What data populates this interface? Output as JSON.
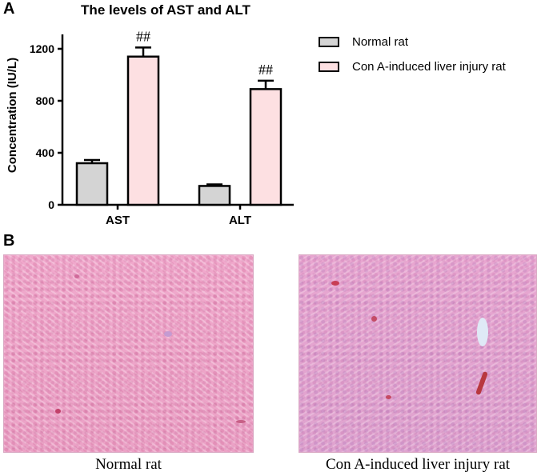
{
  "panels": {
    "a_label": "A",
    "b_label": "B"
  },
  "chart_data": {
    "type": "bar",
    "title": "The levels of AST and ALT",
    "ylabel": "Concentration (IU/L)",
    "xlabel": "",
    "categories": [
      "AST",
      "ALT"
    ],
    "ylim": [
      0,
      1200
    ],
    "yticks": [
      "0",
      "400",
      "800",
      "1200"
    ],
    "ytick_values": [
      0,
      400,
      800,
      1200
    ],
    "series": [
      {
        "name": "Normal rat",
        "values": [
          320,
          145
        ],
        "errors": [
          25,
          12
        ],
        "color": "#d4d4d4",
        "annotations": [
          "",
          ""
        ]
      },
      {
        "name": "Con A-induced liver injury rat",
        "values": [
          1140,
          890
        ],
        "errors": [
          70,
          65
        ],
        "color": "#fde0e2",
        "annotations": [
          "##",
          "##"
        ]
      }
    ],
    "legend_position": "right",
    "grid": false
  },
  "micrographs": {
    "normal_caption": "Normal rat",
    "injury_caption": "Con A-induced liver injury rat"
  }
}
